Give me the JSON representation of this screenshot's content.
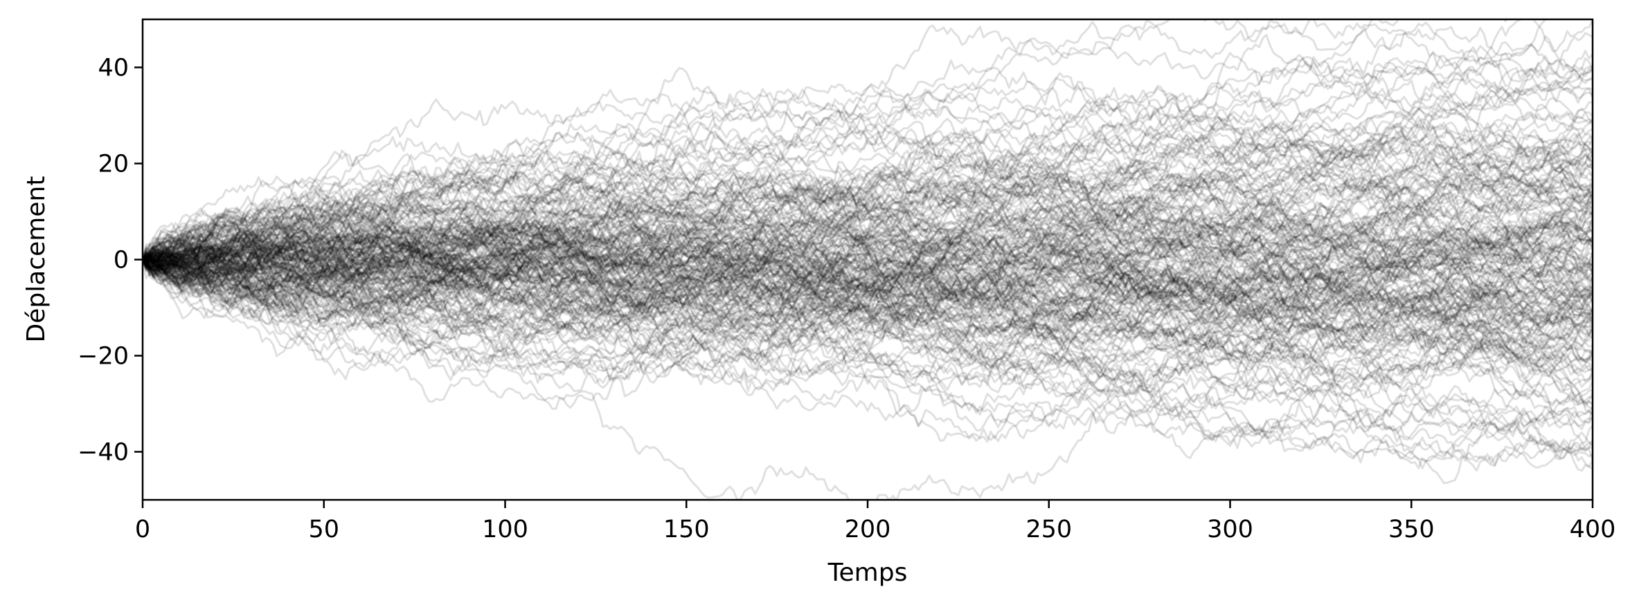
{
  "chart_data": {
    "type": "line",
    "title": "",
    "xlabel": "Temps",
    "ylabel": "Déplacement",
    "xlim": [
      0,
      400
    ],
    "ylim": [
      -50,
      50
    ],
    "x_ticks": [
      0,
      50,
      100,
      150,
      200,
      250,
      300,
      350,
      400
    ],
    "y_ticks": [
      -40,
      -20,
      0,
      20,
      40
    ],
    "x_tick_labels": [
      "0",
      "50",
      "100",
      "150",
      "200",
      "250",
      "300",
      "350",
      "400"
    ],
    "y_tick_labels": [
      "−40",
      "−20",
      "0",
      "20",
      "40"
    ],
    "grid": false,
    "legend": "none",
    "line_color": "#000000",
    "line_opacity": 0.12,
    "series_description": "About 200 random-walk trajectories starting at 0, spreading roughly as sqrt(t)",
    "walk_count": 200,
    "step_std": 1,
    "x_start": 0,
    "x_end": 400
  }
}
